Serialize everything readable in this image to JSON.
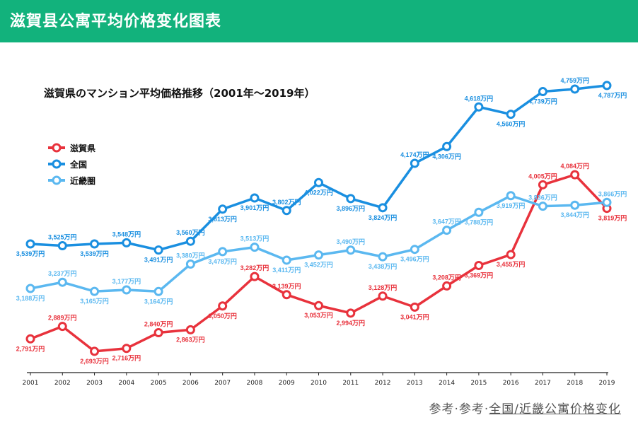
{
  "header": {
    "title": "滋賀县公寓平均价格变化图表"
  },
  "footer": {
    "prefix": "参考·参考·",
    "link": "全国/近畿公寓价格变化"
  },
  "chart_data": {
    "type": "line",
    "title": "滋賀県のマンション平均価格推移（2001年〜2019年）",
    "unit_suffix": "万円",
    "x": [
      "2001",
      "2002",
      "2003",
      "2004",
      "2005",
      "2006",
      "2007",
      "2008",
      "2009",
      "2010",
      "2011",
      "2012",
      "2013",
      "2014",
      "2015",
      "2016",
      "2017",
      "2018",
      "2019"
    ],
    "legend_placement": "top-left",
    "grid": false,
    "series": [
      {
        "name": "滋賀県",
        "color": "#e8323c",
        "values": [
          2791,
          2889,
          2693,
          2716,
          2840,
          2863,
          3050,
          3282,
          3139,
          3053,
          2994,
          3128,
          3041,
          3208,
          3369,
          3455,
          4005,
          4084,
          3819
        ]
      },
      {
        "name": "全国",
        "color": "#1a8fe0",
        "values": [
          3539,
          3525,
          3539,
          3548,
          3491,
          3560,
          3813,
          3901,
          3802,
          4022,
          3896,
          3824,
          4174,
          4306,
          4618,
          4560,
          4739,
          4759,
          4787
        ]
      },
      {
        "name": "近畿圏",
        "color": "#5bb8f0",
        "values": [
          3188,
          3237,
          3165,
          3177,
          3164,
          3380,
          3478,
          3513,
          3411,
          3452,
          3490,
          3438,
          3496,
          3647,
          3788,
          3919,
          3836,
          3844,
          3866
        ]
      }
    ]
  }
}
